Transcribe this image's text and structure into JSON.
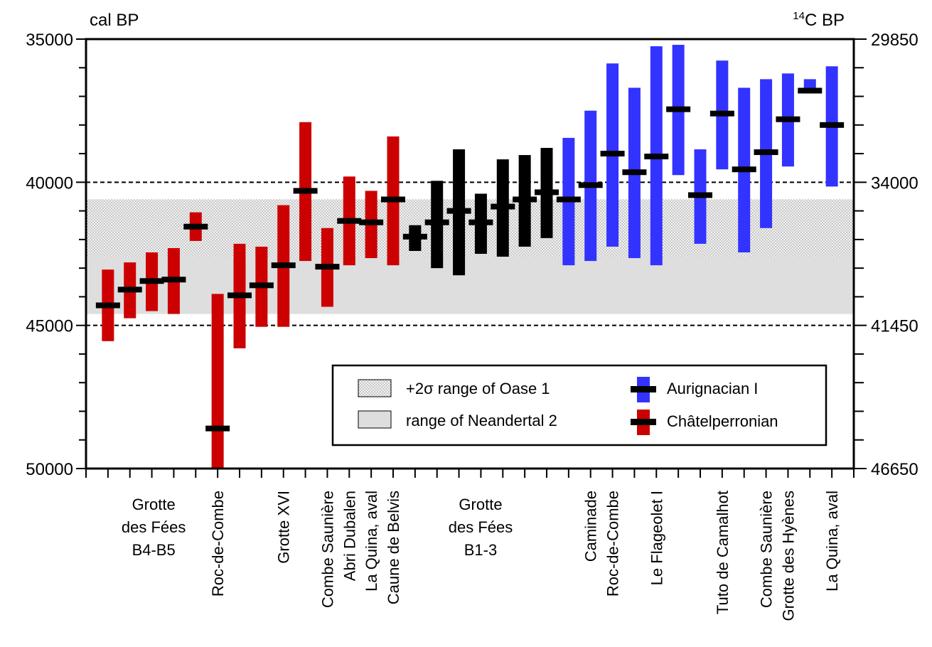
{
  "chart_data": {
    "type": "range-bar",
    "y_left_label": "cal BP",
    "y_right_label_sup": "14",
    "y_right_label_main": "C BP",
    "y_left_ticks": [
      "35000",
      "40000",
      "45000",
      "50000"
    ],
    "y_left_tick_values": [
      35000,
      40000,
      45000,
      50000
    ],
    "y_right_ticks": [
      "29850",
      "34000",
      "41450",
      "46650"
    ],
    "y_right_tick_values": [
      29850,
      34000,
      41450,
      46650
    ],
    "ylim": [
      35000,
      50000
    ],
    "y_reversed": true,
    "reference_lines_cal_bp": [
      40000,
      45000
    ],
    "bands": [
      {
        "name": "+2σ range of Oase 1",
        "from": 40600,
        "to": 42600,
        "pattern": "dots"
      },
      {
        "name": "range of Neandertal 2",
        "from": 42600,
        "to": 44600,
        "pattern": "solid"
      }
    ],
    "group_labels": [
      {
        "text": "Grotte\ndes Fées\nB4-B5",
        "col": 3,
        "orientation": "horizontal"
      },
      {
        "text": "Roc-de-Combe",
        "col": 6,
        "orientation": "vertical"
      },
      {
        "text": "Grotte XVI",
        "col": 9,
        "orientation": "vertical"
      },
      {
        "text": "Combe Saunière",
        "col": 11,
        "orientation": "vertical"
      },
      {
        "text": "Abri Dubalen",
        "col": 12,
        "orientation": "vertical"
      },
      {
        "text": "La Quina, aval",
        "col": 13,
        "orientation": "vertical"
      },
      {
        "text": "Caune de Belvis",
        "col": 14,
        "orientation": "vertical"
      },
      {
        "text": "Grotte\ndes Fées\nB1-3",
        "col": 18,
        "orientation": "horizontal"
      },
      {
        "text": "Caminade",
        "col": 23,
        "orientation": "vertical"
      },
      {
        "text": "Roc-de-Combe",
        "col": 24,
        "orientation": "vertical"
      },
      {
        "text": "Le Flageolet I",
        "col": 26,
        "orientation": "vertical"
      },
      {
        "text": "Tuto de Camalhot",
        "col": 29,
        "orientation": "vertical"
      },
      {
        "text": "Combe Saunière",
        "col": 31,
        "orientation": "vertical"
      },
      {
        "text": "Grotte des Hyènes",
        "col": 32,
        "orientation": "vertical"
      },
      {
        "text": "La Quina, aval",
        "col": 34,
        "orientation": "vertical"
      }
    ],
    "series": [
      {
        "name": "Châtelperronian",
        "color": "#cc0000",
        "points": [
          {
            "col": 1,
            "low": 43050,
            "high": 45550,
            "mid": 44300
          },
          {
            "col": 2,
            "low": 42800,
            "high": 44750,
            "mid": 43750
          },
          {
            "col": 3,
            "low": 42450,
            "high": 44500,
            "mid": 43450
          },
          {
            "col": 4,
            "low": 42300,
            "high": 44600,
            "mid": 43400
          },
          {
            "col": 5,
            "low": 41050,
            "high": 42050,
            "mid": 41550
          },
          {
            "col": 6,
            "low": 43900,
            "high": 50000,
            "mid": 48600
          },
          {
            "col": 7,
            "low": 42150,
            "high": 45800,
            "mid": 43950
          },
          {
            "col": 8,
            "low": 42250,
            "high": 45050,
            "mid": 43600
          },
          {
            "col": 9,
            "low": 40800,
            "high": 45050,
            "mid": 42900
          },
          {
            "col": 10,
            "low": 37900,
            "high": 42750,
            "mid": 40300
          },
          {
            "col": 11,
            "low": 41600,
            "high": 44350,
            "mid": 42950
          },
          {
            "col": 12,
            "low": 39800,
            "high": 42900,
            "mid": 41350
          },
          {
            "col": 13,
            "low": 40300,
            "high": 42650,
            "mid": 41400
          },
          {
            "col": 14,
            "low": 38400,
            "high": 42900,
            "mid": 40600
          }
        ]
      },
      {
        "name": "Aurignacian I",
        "color": "#000000",
        "points": [
          {
            "col": 15,
            "low": 41500,
            "high": 42400,
            "mid": 41900
          },
          {
            "col": 16,
            "low": 39950,
            "high": 43000,
            "mid": 41400
          },
          {
            "col": 17,
            "low": 38850,
            "high": 43250,
            "mid": 41000
          },
          {
            "col": 18,
            "low": 40400,
            "high": 42500,
            "mid": 41400
          },
          {
            "col": 19,
            "low": 39200,
            "high": 42600,
            "mid": 40850
          },
          {
            "col": 20,
            "low": 39050,
            "high": 42250,
            "mid": 40600
          },
          {
            "col": 21,
            "low": 38800,
            "high": 41950,
            "mid": 40350
          }
        ]
      },
      {
        "name": "Aurignacian I (blue)",
        "color": "#3333ff",
        "points": [
          {
            "col": 22,
            "low": 38450,
            "high": 42900,
            "mid": 40600
          },
          {
            "col": 23,
            "low": 37500,
            "high": 42750,
            "mid": 40100
          },
          {
            "col": 24,
            "low": 35850,
            "high": 42250,
            "mid": 39000
          },
          {
            "col": 25,
            "low": 36700,
            "high": 42650,
            "mid": 39650
          },
          {
            "col": 26,
            "low": 35250,
            "high": 42900,
            "mid": 39100
          },
          {
            "col": 27,
            "low": 35200,
            "high": 39750,
            "mid": 37450
          },
          {
            "col": 28,
            "low": 38850,
            "high": 42150,
            "mid": 40450
          },
          {
            "col": 29,
            "low": 35750,
            "high": 39550,
            "mid": 37600
          },
          {
            "col": 30,
            "low": 36700,
            "high": 42450,
            "mid": 39550
          },
          {
            "col": 31,
            "low": 36400,
            "high": 41600,
            "mid": 38950
          },
          {
            "col": 32,
            "low": 36200,
            "high": 39450,
            "mid": 37800
          },
          {
            "col": 33,
            "low": 36400,
            "high": 36900,
            "mid": 36800
          },
          {
            "col": 34,
            "low": 35950,
            "high": 40150,
            "mid": 38000
          }
        ]
      }
    ],
    "legend": {
      "placement": "bottom-right",
      "items": [
        {
          "label": "+2σ range of Oase 1",
          "kind": "dots-swatch"
        },
        {
          "label": "range of Neandertal 2",
          "kind": "grey-swatch"
        },
        {
          "label": "Aurignacian I",
          "kind": "bar-mid",
          "color": "#3333ff"
        },
        {
          "label": "Châtelperronian",
          "kind": "bar-mid",
          "color": "#cc0000"
        }
      ]
    }
  }
}
